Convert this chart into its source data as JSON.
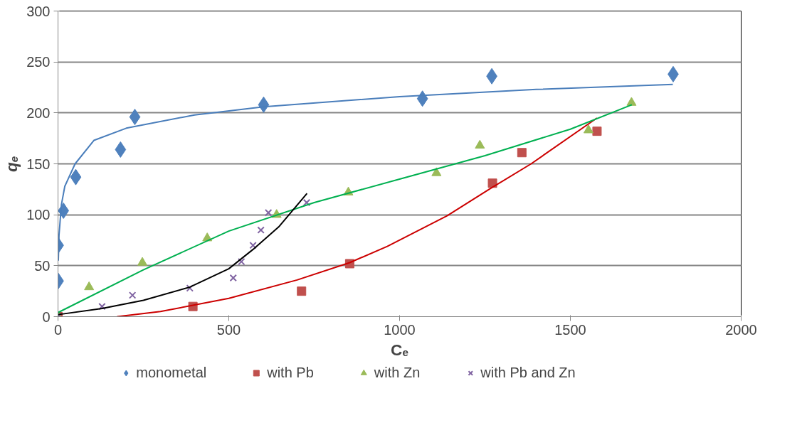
{
  "chart_data": {
    "type": "scatter",
    "xlabel": "Cₑ",
    "ylabel": "qₑ",
    "xlim": [
      0,
      2000
    ],
    "ylim": [
      0,
      300
    ],
    "xticks": [
      0,
      500,
      1000,
      1500,
      2000
    ],
    "yticks": [
      0,
      50,
      100,
      150,
      200,
      250,
      300
    ],
    "grid": "y",
    "legend": "bottom",
    "series": [
      {
        "name": "monometal",
        "marker": "diamond",
        "color": "#4f81bd",
        "x": [
          1,
          1,
          16,
          52,
          183,
          225,
          602,
          1067,
          1270,
          1801
        ],
        "values": [
          35,
          70,
          104,
          137,
          164,
          196,
          208,
          214,
          236,
          238
        ]
      },
      {
        "name": "with Pb",
        "marker": "square",
        "color": "#c0504d",
        "x": [
          0,
          395,
          713,
          854,
          1272,
          1358,
          1578
        ],
        "values": [
          0,
          10,
          25,
          52,
          131,
          161,
          182
        ]
      },
      {
        "name": "with Zn",
        "marker": "triangle",
        "color": "#9bbb59",
        "x": [
          0,
          91,
          247,
          437,
          640,
          850,
          1108,
          1235,
          1553,
          1679
        ],
        "values": [
          0,
          29,
          53,
          77,
          100,
          122,
          141,
          168,
          183,
          210
        ]
      },
      {
        "name": "with Pb and Zn",
        "marker": "cross",
        "color": "#8064a2",
        "x": [
          0,
          129,
          218,
          386,
          513,
          537,
          571,
          594,
          616,
          728
        ],
        "values": [
          0,
          10,
          21,
          28,
          38,
          54,
          70,
          85,
          102,
          112
        ]
      },
      {
        "type": "line",
        "marker": "none",
        "line_style": "solid",
        "color": "#4a7ebb",
        "x": [
          1,
          3,
          10,
          20,
          50,
          105,
          200,
          400,
          602,
          1000,
          1400,
          1800
        ],
        "values": [
          55,
          80,
          110,
          128,
          150,
          173,
          185,
          198,
          206,
          216,
          223,
          228
        ]
      },
      {
        "type": "line",
        "marker": "none",
        "line_style": "solid",
        "color": "#cc0000",
        "x": [
          173,
          300,
          500,
          700,
          854,
          964,
          1139,
          1272,
          1385,
          1578
        ],
        "values": [
          0,
          5,
          18,
          36,
          53,
          69,
          99,
          127,
          150,
          195
        ]
      },
      {
        "type": "line",
        "marker": "none",
        "line_style": "solid",
        "color": "#00b050",
        "x": [
          0,
          250,
          500,
          750,
          1000,
          1250,
          1500,
          1680
        ],
        "values": [
          4,
          46,
          84,
          112,
          135,
          158,
          184,
          208
        ]
      },
      {
        "type": "line",
        "marker": "none",
        "line_style": "solid",
        "color": "#000000",
        "x": [
          0,
          129,
          250,
          386,
          500,
          571,
          646,
          729
        ],
        "values": [
          2,
          8,
          16,
          29,
          47,
          66,
          88,
          121
        ]
      }
    ]
  }
}
